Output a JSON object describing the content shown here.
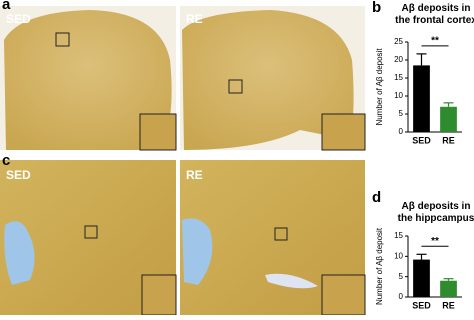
{
  "panels": {
    "a": {
      "label": "a",
      "left": "SED",
      "right": "RE"
    },
    "b": {
      "label": "b"
    },
    "c": {
      "label": "c",
      "left": "SED",
      "right": "RE"
    },
    "d": {
      "label": "d"
    }
  },
  "chart_data": [
    {
      "type": "bar",
      "title": "Aβ deposits in the frontal cortex",
      "y_label": "Number of Aβ deposit",
      "categories": [
        "SED",
        "RE"
      ],
      "values": [
        18.5,
        7
      ],
      "errors": [
        3.2,
        1.1
      ],
      "colors": [
        "#000000",
        "#2e8b2e"
      ],
      "ylim": [
        0,
        25
      ],
      "yticks": [
        0,
        5,
        10,
        15,
        20,
        25
      ],
      "annotation": "**"
    },
    {
      "type": "bar",
      "title": "Aβ deposits in the hippcampus",
      "y_label": "Number of Aβ deposit",
      "categories": [
        "SED",
        "RE"
      ],
      "values": [
        9.2,
        4
      ],
      "errors": [
        1.3,
        0.5
      ],
      "colors": [
        "#000000",
        "#2e8b2e"
      ],
      "ylim": [
        0,
        15
      ],
      "yticks": [
        0,
        5,
        10,
        15
      ],
      "annotation": "**"
    }
  ]
}
